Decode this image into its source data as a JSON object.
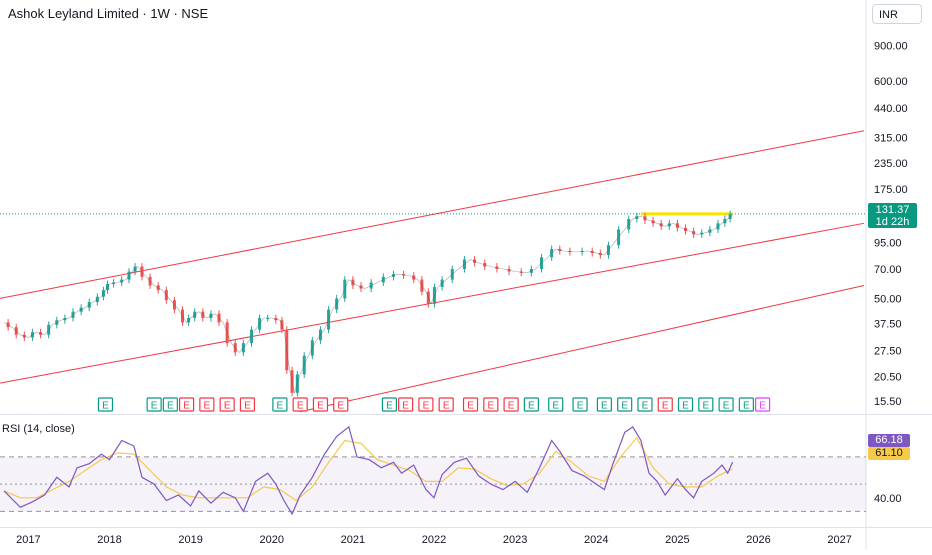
{
  "header": {
    "title": "Ashok Leyland Limited · 1W · NSE",
    "currency": "INR"
  },
  "price_axis": {
    "labels": [
      "900.00",
      "600.00",
      "440.00",
      "315.00",
      "235.00",
      "175.00",
      "95.00",
      "70.00",
      "50.00",
      "37.50",
      "27.50",
      "20.50",
      "15.50"
    ]
  },
  "time_axis": {
    "labels": [
      "2017",
      "2018",
      "2019",
      "2020",
      "2021",
      "2022",
      "2023",
      "2024",
      "2025",
      "2026",
      "2027"
    ]
  },
  "last_price": {
    "value": "131.37",
    "countdown": "1d 22h"
  },
  "rsi": {
    "label": "RSI (14, close)",
    "value": "66.18",
    "ma_value": "61.10",
    "axis_label": "40.00"
  },
  "colors": {
    "up": "#26a69a",
    "down": "#ef5350",
    "channel": "#f23645",
    "rsi_line": "#7e57c2",
    "rsi_ma": "#f7c948",
    "highlight": "#f7e200",
    "last_price_line": "#089981",
    "earnings_green": "#089981",
    "earnings_red": "#f23645",
    "earnings_pink": "#e040fb"
  },
  "earnings": {
    "marker_label": "E",
    "markers": [
      {
        "date": 2017.95,
        "type": "green"
      },
      {
        "date": 2018.55,
        "type": "green"
      },
      {
        "date": 2018.75,
        "type": "green"
      },
      {
        "date": 2018.95,
        "type": "red"
      },
      {
        "date": 2019.2,
        "type": "red"
      },
      {
        "date": 2019.45,
        "type": "red"
      },
      {
        "date": 2019.7,
        "type": "red"
      },
      {
        "date": 2020.1,
        "type": "green"
      },
      {
        "date": 2020.35,
        "type": "red"
      },
      {
        "date": 2020.6,
        "type": "red"
      },
      {
        "date": 2020.85,
        "type": "red"
      },
      {
        "date": 2021.45,
        "type": "green"
      },
      {
        "date": 2021.65,
        "type": "red"
      },
      {
        "date": 2021.9,
        "type": "red"
      },
      {
        "date": 2022.15,
        "type": "red"
      },
      {
        "date": 2022.45,
        "type": "red"
      },
      {
        "date": 2022.7,
        "type": "red"
      },
      {
        "date": 2022.95,
        "type": "red"
      },
      {
        "date": 2023.2,
        "type": "green"
      },
      {
        "date": 2023.5,
        "type": "green"
      },
      {
        "date": 2023.8,
        "type": "green"
      },
      {
        "date": 2024.1,
        "type": "green"
      },
      {
        "date": 2024.35,
        "type": "green"
      },
      {
        "date": 2024.6,
        "type": "green"
      },
      {
        "date": 2024.85,
        "type": "red"
      },
      {
        "date": 2025.1,
        "type": "green"
      },
      {
        "date": 2025.35,
        "type": "green"
      },
      {
        "date": 2025.6,
        "type": "green"
      },
      {
        "date": 2025.85,
        "type": "green"
      },
      {
        "date": 2026.05,
        "type": "pink"
      }
    ]
  },
  "chart_data": {
    "type": "line",
    "title": "Ashok Leyland Limited · 1W · NSE",
    "x_range": [
      2016.65,
      2027.3
    ],
    "y_scale": "log",
    "y_range": [
      13.5,
      1100
    ],
    "last_price": 131.37,
    "price_series": [
      [
        2016.7,
        38
      ],
      [
        2016.8,
        36
      ],
      [
        2016.9,
        33
      ],
      [
        2017.0,
        32
      ],
      [
        2017.1,
        34
      ],
      [
        2017.2,
        33
      ],
      [
        2017.3,
        37
      ],
      [
        2017.4,
        39
      ],
      [
        2017.5,
        40
      ],
      [
        2017.6,
        43
      ],
      [
        2017.7,
        45
      ],
      [
        2017.8,
        48
      ],
      [
        2017.9,
        51
      ],
      [
        2017.95,
        55
      ],
      [
        2018.0,
        59
      ],
      [
        2018.1,
        60
      ],
      [
        2018.2,
        62
      ],
      [
        2018.28,
        68
      ],
      [
        2018.35,
        72
      ],
      [
        2018.45,
        64
      ],
      [
        2018.55,
        58
      ],
      [
        2018.65,
        55
      ],
      [
        2018.75,
        49
      ],
      [
        2018.85,
        44
      ],
      [
        2018.95,
        38
      ],
      [
        2019.0,
        40
      ],
      [
        2019.1,
        43
      ],
      [
        2019.2,
        40
      ],
      [
        2019.3,
        42
      ],
      [
        2019.4,
        38
      ],
      [
        2019.5,
        30
      ],
      [
        2019.6,
        27
      ],
      [
        2019.7,
        30
      ],
      [
        2019.8,
        35
      ],
      [
        2019.9,
        40
      ],
      [
        2020.0,
        40
      ],
      [
        2020.1,
        39
      ],
      [
        2020.15,
        35
      ],
      [
        2020.22,
        22
      ],
      [
        2020.28,
        17
      ],
      [
        2020.35,
        21
      ],
      [
        2020.45,
        26
      ],
      [
        2020.55,
        31
      ],
      [
        2020.65,
        35
      ],
      [
        2020.75,
        44
      ],
      [
        2020.85,
        50
      ],
      [
        2020.95,
        62
      ],
      [
        2021.05,
        58
      ],
      [
        2021.15,
        56
      ],
      [
        2021.3,
        60
      ],
      [
        2021.45,
        64
      ],
      [
        2021.55,
        66
      ],
      [
        2021.7,
        65
      ],
      [
        2021.8,
        62
      ],
      [
        2021.9,
        54
      ],
      [
        2021.96,
        47
      ],
      [
        2022.05,
        57
      ],
      [
        2022.15,
        62
      ],
      [
        2022.3,
        70
      ],
      [
        2022.45,
        78
      ],
      [
        2022.55,
        75
      ],
      [
        2022.7,
        72
      ],
      [
        2022.85,
        70
      ],
      [
        2023.0,
        68
      ],
      [
        2023.15,
        67
      ],
      [
        2023.25,
        70
      ],
      [
        2023.4,
        80
      ],
      [
        2023.5,
        88
      ],
      [
        2023.6,
        86
      ],
      [
        2023.75,
        85
      ],
      [
        2023.9,
        86
      ],
      [
        2024.0,
        84
      ],
      [
        2024.1,
        82
      ],
      [
        2024.2,
        92
      ],
      [
        2024.35,
        110
      ],
      [
        2024.45,
        124
      ],
      [
        2024.55,
        128
      ],
      [
        2024.65,
        122
      ],
      [
        2024.75,
        118
      ],
      [
        2024.85,
        114
      ],
      [
        2024.95,
        118
      ],
      [
        2025.05,
        112
      ],
      [
        2025.15,
        108
      ],
      [
        2025.25,
        104
      ],
      [
        2025.35,
        106
      ],
      [
        2025.45,
        110
      ],
      [
        2025.55,
        118
      ],
      [
        2025.62,
        124
      ],
      [
        2025.68,
        131.37
      ]
    ],
    "resistance_level": {
      "value": 131.37,
      "from": 2024.55,
      "to": 2025.68
    },
    "channel_lines": [
      {
        "x": [
          2016.65,
          2027.3
        ],
        "y": [
          50,
          340
        ]
      },
      {
        "x": [
          2016.65,
          2027.3
        ],
        "y": [
          19,
          118
        ]
      },
      {
        "x": [
          2020.35,
          2027.3
        ],
        "y": [
          13.7,
          58
        ]
      }
    ],
    "rsi_series": [
      [
        2016.7,
        45
      ],
      [
        2016.9,
        33
      ],
      [
        2017.05,
        37
      ],
      [
        2017.2,
        42
      ],
      [
        2017.35,
        55
      ],
      [
        2017.5,
        48
      ],
      [
        2017.6,
        62
      ],
      [
        2017.75,
        65
      ],
      [
        2017.9,
        72
      ],
      [
        2018.0,
        68
      ],
      [
        2018.15,
        82
      ],
      [
        2018.3,
        78
      ],
      [
        2018.4,
        55
      ],
      [
        2018.55,
        50
      ],
      [
        2018.7,
        38
      ],
      [
        2018.85,
        42
      ],
      [
        2019.0,
        34
      ],
      [
        2019.1,
        45
      ],
      [
        2019.25,
        36
      ],
      [
        2019.4,
        44
      ],
      [
        2019.55,
        40
      ],
      [
        2019.65,
        30
      ],
      [
        2019.8,
        52
      ],
      [
        2019.95,
        58
      ],
      [
        2020.05,
        50
      ],
      [
        2020.15,
        38
      ],
      [
        2020.25,
        28
      ],
      [
        2020.35,
        42
      ],
      [
        2020.5,
        55
      ],
      [
        2020.65,
        72
      ],
      [
        2020.8,
        85
      ],
      [
        2020.95,
        92
      ],
      [
        2021.05,
        70
      ],
      [
        2021.2,
        68
      ],
      [
        2021.35,
        62
      ],
      [
        2021.5,
        66
      ],
      [
        2021.6,
        58
      ],
      [
        2021.75,
        64
      ],
      [
        2021.9,
        46
      ],
      [
        2022.0,
        40
      ],
      [
        2022.1,
        57
      ],
      [
        2022.25,
        66
      ],
      [
        2022.4,
        69
      ],
      [
        2022.55,
        56
      ],
      [
        2022.7,
        50
      ],
      [
        2022.85,
        46
      ],
      [
        2023.0,
        52
      ],
      [
        2023.15,
        44
      ],
      [
        2023.3,
        62
      ],
      [
        2023.45,
        82
      ],
      [
        2023.55,
        74
      ],
      [
        2023.7,
        60
      ],
      [
        2023.85,
        56
      ],
      [
        2024.0,
        50
      ],
      [
        2024.1,
        46
      ],
      [
        2024.2,
        64
      ],
      [
        2024.35,
        88
      ],
      [
        2024.45,
        92
      ],
      [
        2024.55,
        82
      ],
      [
        2024.65,
        58
      ],
      [
        2024.75,
        52
      ],
      [
        2024.85,
        42
      ],
      [
        2025.0,
        54
      ],
      [
        2025.1,
        46
      ],
      [
        2025.2,
        40
      ],
      [
        2025.3,
        52
      ],
      [
        2025.45,
        58
      ],
      [
        2025.55,
        64
      ],
      [
        2025.62,
        58
      ],
      [
        2025.68,
        66.18
      ]
    ],
    "rsi_ma_series": [
      [
        2016.7,
        45
      ],
      [
        2016.9,
        40
      ],
      [
        2017.1,
        40
      ],
      [
        2017.3,
        46
      ],
      [
        2017.5,
        52
      ],
      [
        2017.7,
        60
      ],
      [
        2017.9,
        68
      ],
      [
        2018.1,
        73
      ],
      [
        2018.3,
        72
      ],
      [
        2018.5,
        60
      ],
      [
        2018.7,
        48
      ],
      [
        2018.9,
        42
      ],
      [
        2019.1,
        40
      ],
      [
        2019.3,
        40
      ],
      [
        2019.5,
        40
      ],
      [
        2019.7,
        40
      ],
      [
        2019.9,
        48
      ],
      [
        2020.1,
        46
      ],
      [
        2020.3,
        38
      ],
      [
        2020.5,
        48
      ],
      [
        2020.7,
        66
      ],
      [
        2020.9,
        82
      ],
      [
        2021.1,
        80
      ],
      [
        2021.3,
        68
      ],
      [
        2021.5,
        64
      ],
      [
        2021.7,
        60
      ],
      [
        2021.9,
        52
      ],
      [
        2022.1,
        52
      ],
      [
        2022.3,
        62
      ],
      [
        2022.5,
        61
      ],
      [
        2022.7,
        54
      ],
      [
        2022.9,
        49
      ],
      [
        2023.1,
        50
      ],
      [
        2023.3,
        58
      ],
      [
        2023.5,
        74
      ],
      [
        2023.7,
        66
      ],
      [
        2023.9,
        56
      ],
      [
        2024.1,
        52
      ],
      [
        2024.3,
        70
      ],
      [
        2024.5,
        84
      ],
      [
        2024.7,
        62
      ],
      [
        2024.9,
        50
      ],
      [
        2025.1,
        48
      ],
      [
        2025.3,
        48
      ],
      [
        2025.5,
        56
      ],
      [
        2025.68,
        61.1
      ]
    ],
    "rsi_range": [
      20,
      100
    ],
    "rsi_levels": [
      70,
      50,
      30
    ]
  }
}
